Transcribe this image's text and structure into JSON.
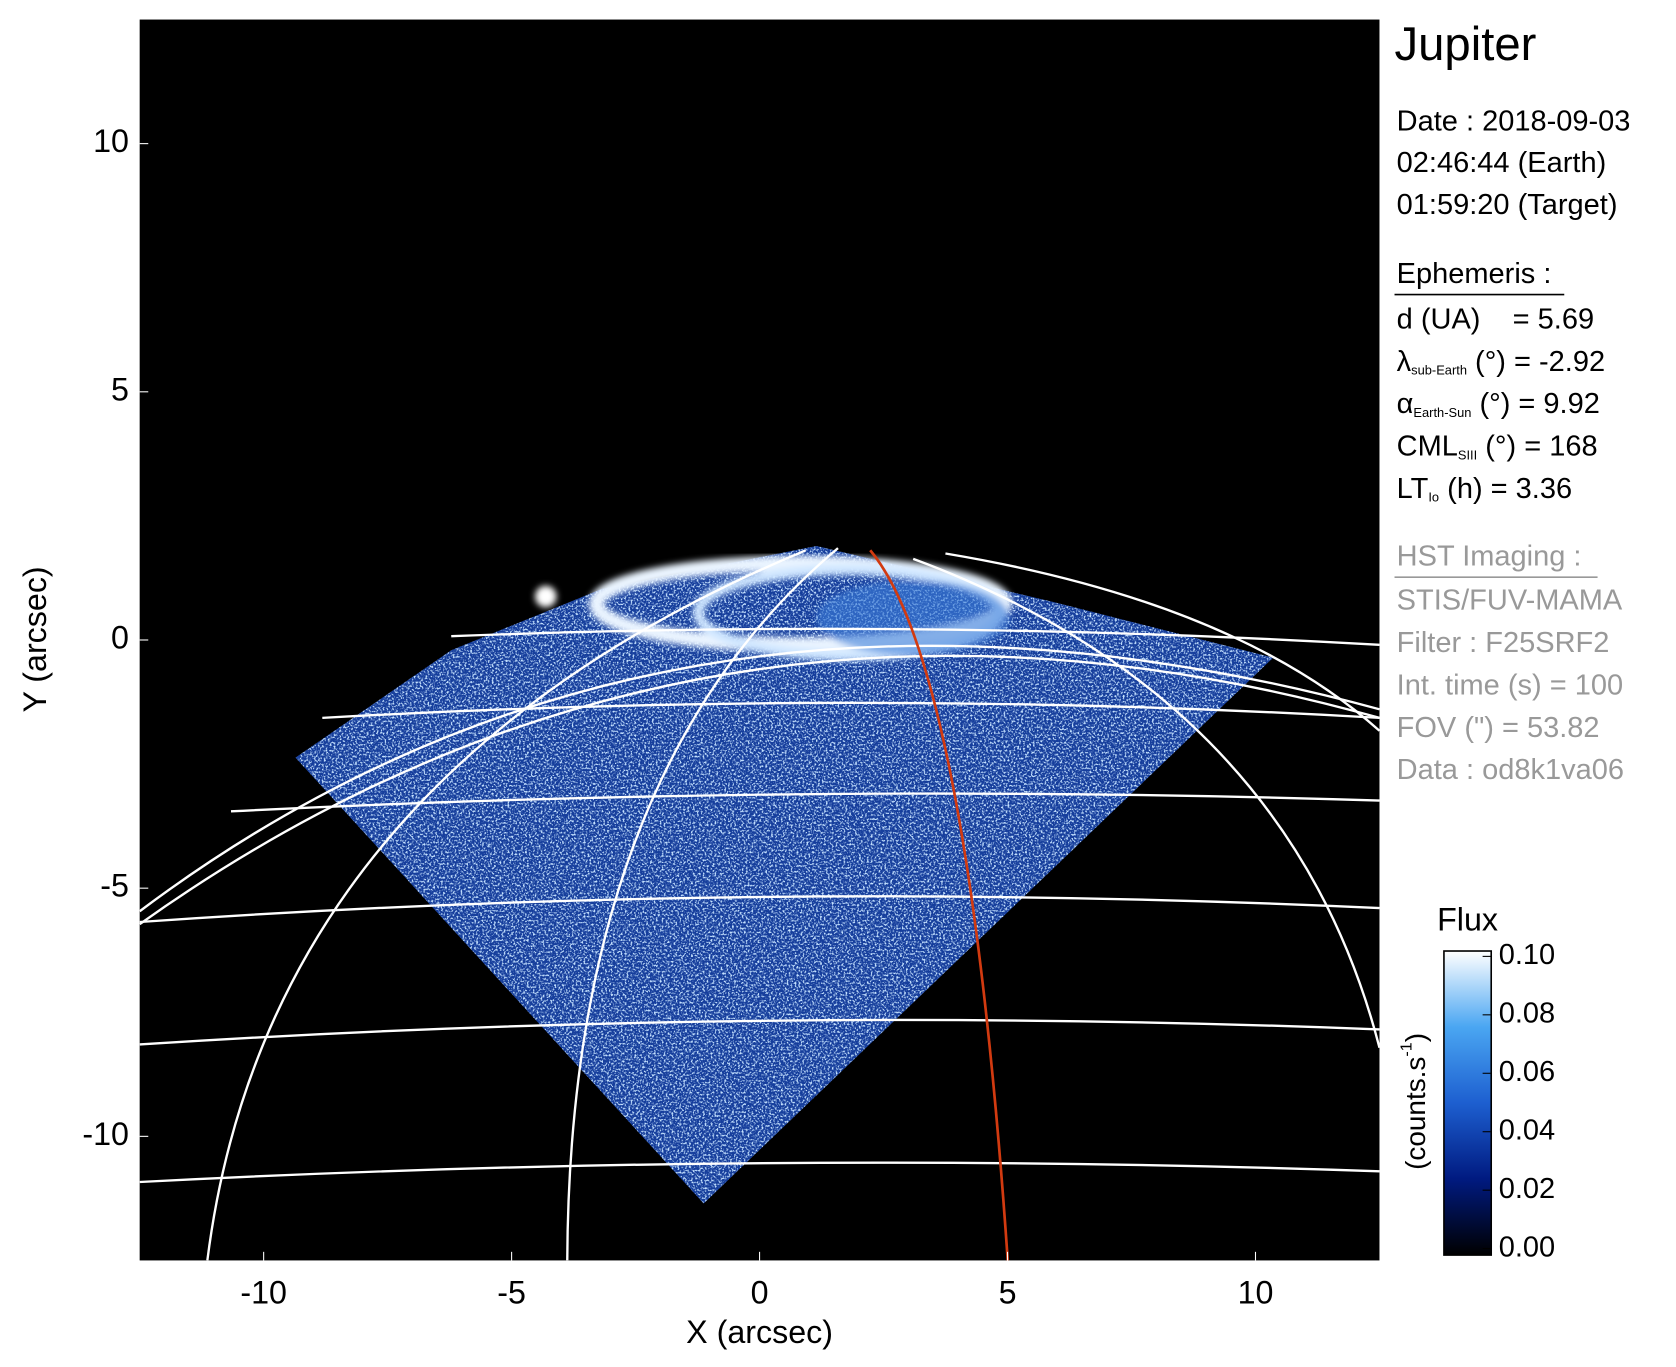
{
  "chart_data": {
    "type": "image",
    "xlabel": "X (arcsec)",
    "ylabel": "Y (arcsec)",
    "xlim": [
      -12.5,
      12.5
    ],
    "ylim": [
      -12.5,
      12.5
    ],
    "xticks": [
      -10,
      -5,
      0,
      5,
      10
    ],
    "yticks": [
      -10,
      -5,
      0,
      5,
      10
    ],
    "colorbar": {
      "title": "Flux",
      "label": "(counts.s",
      "label_sup": "-1",
      "label_end": ")",
      "clim": [
        0,
        0.1
      ],
      "ticks": [
        {
          "value": 0,
          "label": "0.00"
        },
        {
          "value": 0.02,
          "label": "0.02"
        },
        {
          "value": 0.04,
          "label": "0.04"
        },
        {
          "value": 0.06,
          "label": "0.06"
        },
        {
          "value": 0.08,
          "label": "0.08"
        },
        {
          "value": 0.1,
          "label": "0.10"
        }
      ],
      "colors": [
        "#000000",
        "#001a80",
        "#1d5fd0",
        "#4aa6f2",
        "#ffffff"
      ]
    },
    "info": {
      "title": "Jupiter",
      "date": "Date : 2018-09-03",
      "time_earth": "02:46:44 (Earth)",
      "time_target": "01:59:20 (Target)",
      "ephemeris": {
        "heading": "Ephemeris :",
        "rows": [
          {
            "main": "d (UA)    = 5.69"
          },
          {
            "main": "λ",
            "sub": "sub-Earth",
            "rest": " (°) = -2.92"
          },
          {
            "main": "α",
            "sub": "Earth-Sun",
            "rest": " (°) = 9.92"
          },
          {
            "main": "CML",
            "sub": "SIII",
            "rest": " (°) = 168"
          },
          {
            "main": "LT",
            "sub": "Io",
            "rest": " (h) = 3.36"
          }
        ]
      },
      "imaging": {
        "heading": "HST Imaging :",
        "rows": [
          "STIS/FUV-MAMA",
          "Filter : F25SRF2",
          "Int. time (s) = 100",
          "FOV (\") = 53.82",
          "Data : od8k1va06"
        ]
      }
    }
  }
}
